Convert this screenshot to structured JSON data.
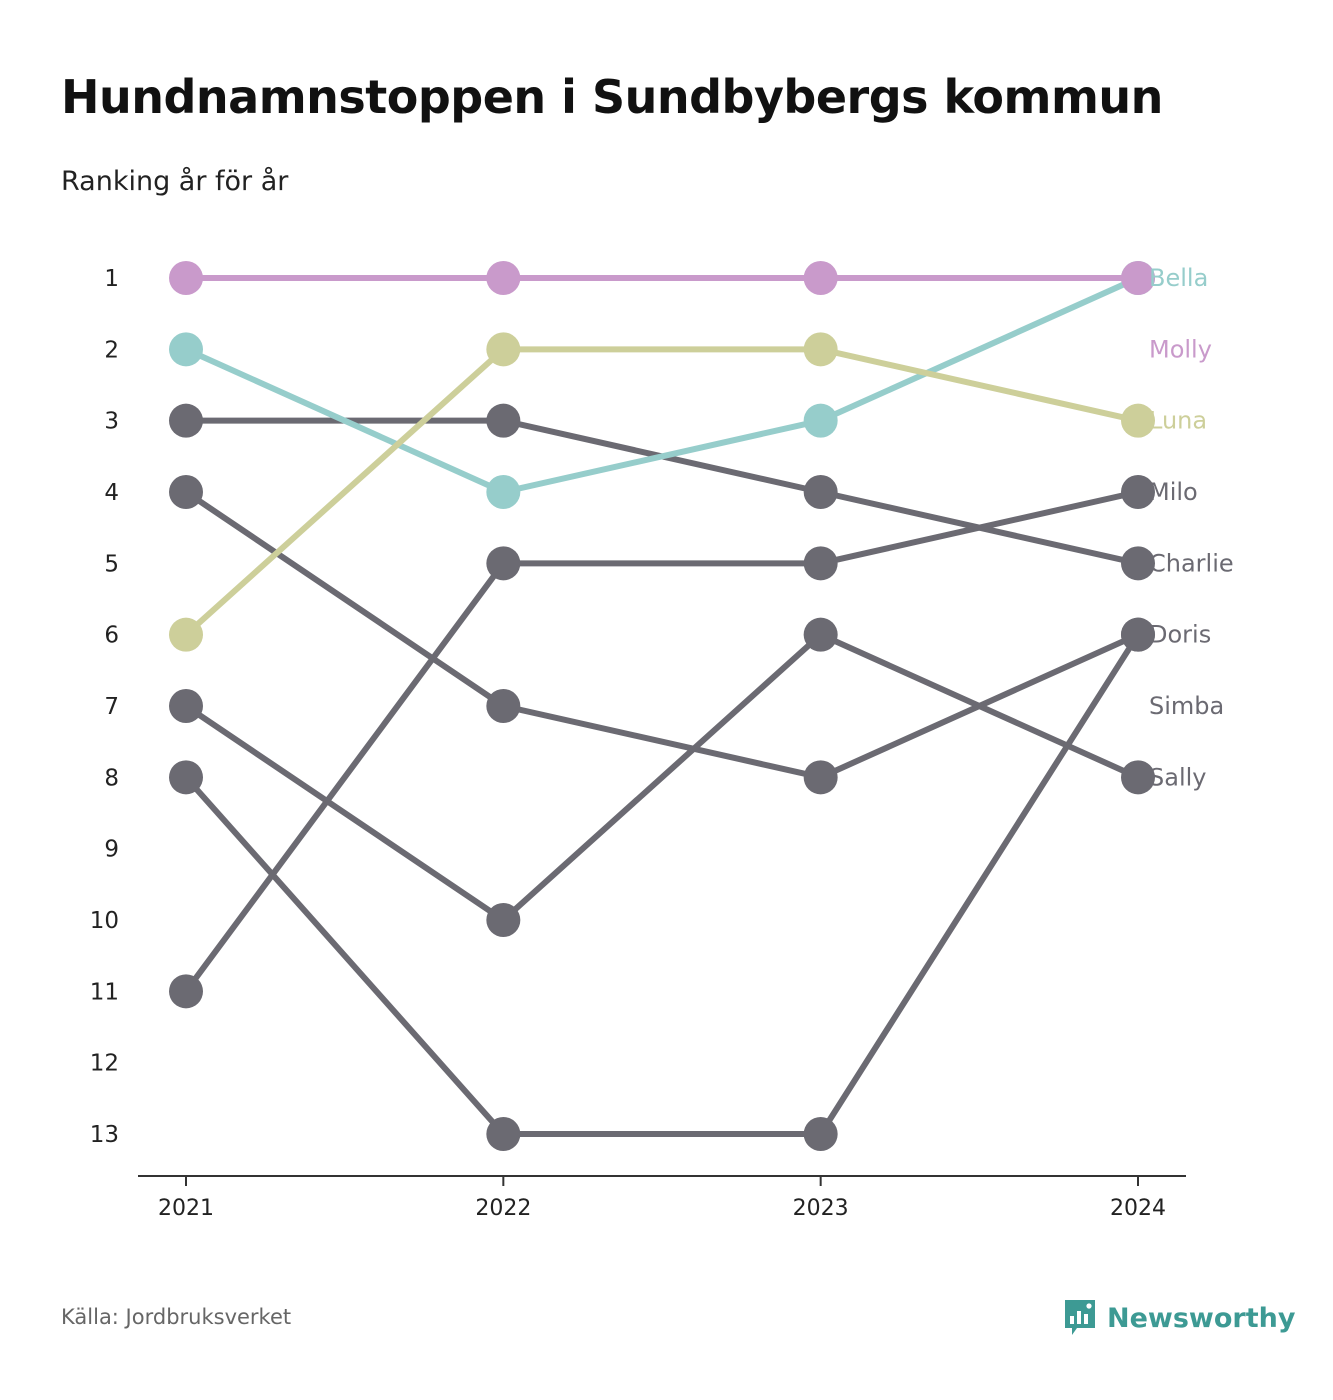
{
  "header": {
    "title": "Hundnamnstoppen i Sundbybergs kommun",
    "subtitle": "Ranking år för år"
  },
  "footer": {
    "source": "Källa: Jordbruksverket",
    "brand": "Newsworthy",
    "brand_icon": "bar-chart-speech-bubble-icon",
    "brand_color": "#3d9a94"
  },
  "chart_data": {
    "type": "line",
    "x": [
      "2021",
      "2022",
      "2023",
      "2024"
    ],
    "y_ticks": [
      "1",
      "2",
      "3",
      "4",
      "5",
      "6",
      "7",
      "8",
      "9",
      "10",
      "11",
      "12",
      "13"
    ],
    "ylim": [
      1,
      13
    ],
    "y_inverted": true,
    "grid": false,
    "legend": "direct labels at right end",
    "series": [
      {
        "name": "Bella",
        "color": "#96cdcb",
        "values": [
          2,
          4,
          3,
          1
        ]
      },
      {
        "name": "Molly",
        "color": "#c99acb",
        "values": [
          1,
          1,
          1,
          1
        ]
      },
      {
        "name": "Luna",
        "color": "#cdcf9a",
        "values": [
          6,
          2,
          2,
          3
        ]
      },
      {
        "name": "Milo",
        "color": "#6b6a72",
        "values": [
          11,
          5,
          5,
          4
        ]
      },
      {
        "name": "Charlie",
        "color": "#6b6a72",
        "values": [
          3,
          3,
          4,
          5
        ]
      },
      {
        "name": "Doris",
        "color": "#6b6a72",
        "values": [
          8,
          13,
          13,
          6
        ]
      },
      {
        "name": "Simba",
        "color": "#6b6a72",
        "values": [
          4,
          7,
          8,
          6
        ]
      },
      {
        "name": "Sally",
        "color": "#6b6a72",
        "values": [
          7,
          10,
          6,
          8
        ]
      }
    ]
  }
}
